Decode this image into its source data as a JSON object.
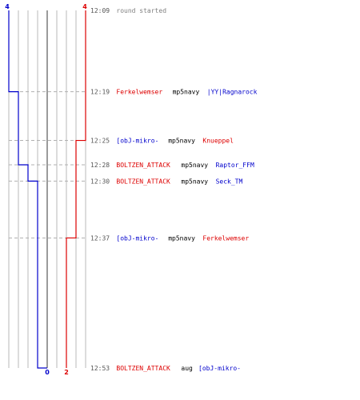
{
  "chart_data": {
    "type": "line",
    "colors": {
      "team_blue": "#0000cc",
      "team_red": "#dd0000",
      "grid": "#b8b8b8",
      "grid_center": "#707070",
      "dash": "#b0b0b0",
      "time": "#555555",
      "weapon": "#000000",
      "started": "#808080"
    },
    "x_range": [
      -4,
      4
    ],
    "team_blue_curve": [
      {
        "t": "12:09",
        "v": -4
      },
      {
        "t": "12:19",
        "v": -3
      },
      {
        "t": "12:28",
        "v": -2
      },
      {
        "t": "12:30",
        "v": -1
      },
      {
        "t": "12:53",
        "v": 0
      }
    ],
    "team_red_curve": [
      {
        "t": "12:09",
        "v": 4
      },
      {
        "t": "12:25",
        "v": 3
      },
      {
        "t": "12:37",
        "v": 2
      }
    ],
    "start_counts": {
      "blue": "4",
      "red": "4"
    },
    "end_counts": {
      "blue": "0",
      "red": "2"
    },
    "events": [
      {
        "time": "12:09",
        "text": "round started"
      },
      {
        "time": "12:19",
        "killer": "Ferkelwemser",
        "killer_team": "red",
        "weapon": "mp5navy",
        "victim": "|YY|Ragnarock",
        "victim_team": "blue"
      },
      {
        "time": "12:25",
        "killer": "[obJ-mikro-",
        "killer_team": "blue",
        "weapon": "mp5navy",
        "victim": "Knueppel",
        "victim_team": "red"
      },
      {
        "time": "12:28",
        "killer": "BOLTZEN_ATTACK",
        "killer_team": "red",
        "weapon": "mp5navy",
        "victim": "Raptor_FFM",
        "victim_team": "blue"
      },
      {
        "time": "12:30",
        "killer": "BOLTZEN_ATTACK",
        "killer_team": "red",
        "weapon": "mp5navy",
        "victim": "Seck_TM",
        "victim_team": "blue"
      },
      {
        "time": "12:37",
        "killer": "[obJ-mikro-",
        "killer_team": "blue",
        "weapon": "mp5navy",
        "victim": "Ferkelwemser",
        "victim_team": "red"
      },
      {
        "time": "12:53",
        "killer": "BOLTZEN_ATTACK",
        "killer_team": "red",
        "weapon": "aug",
        "victim": "[obJ-mikro-",
        "victim_team": "blue"
      }
    ]
  }
}
